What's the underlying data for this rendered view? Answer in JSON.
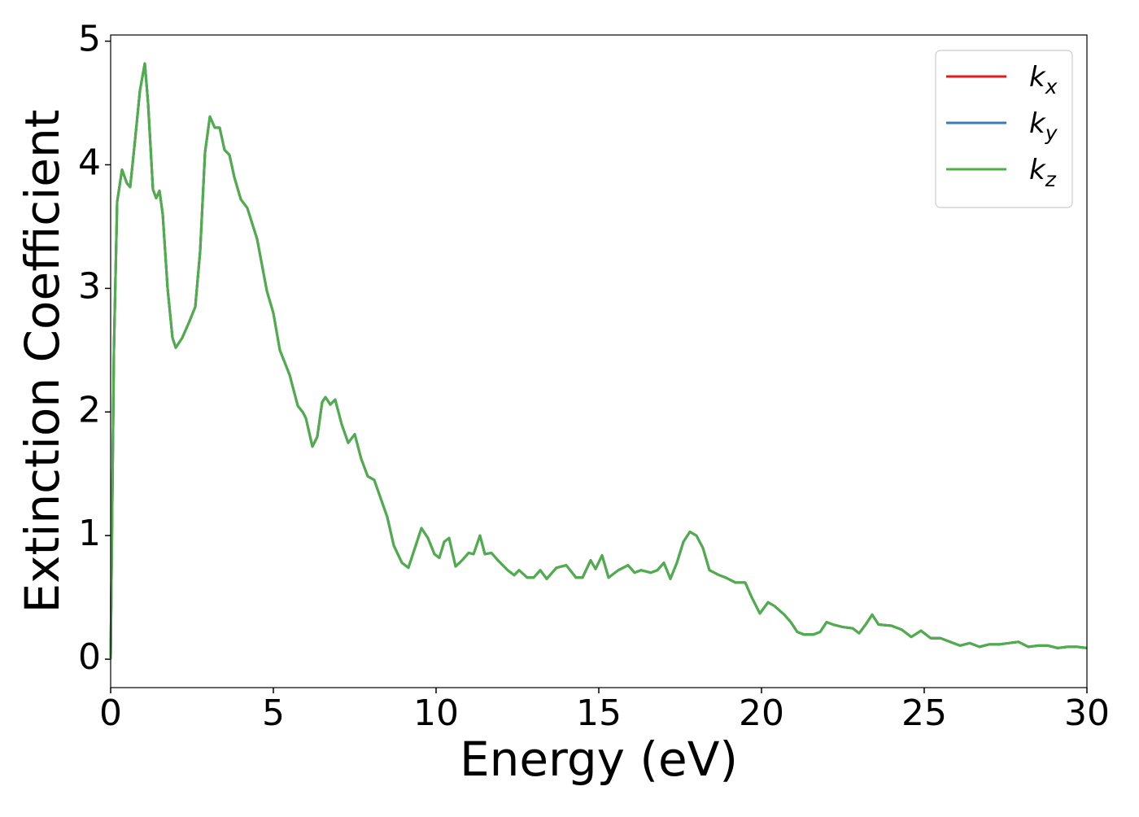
{
  "chart_data": {
    "type": "line",
    "xlabel": "Energy (eV)",
    "ylabel": "Extinction Coefficient",
    "xlim": [
      0,
      30
    ],
    "ylim": [
      -0.23,
      5.05
    ],
    "xticks": [
      0,
      5,
      10,
      15,
      20,
      25,
      30
    ],
    "yticks": [
      0,
      1,
      2,
      3,
      4,
      5
    ],
    "grid": false,
    "legend": "upper right",
    "x": [
      0,
      0.1,
      0.2,
      0.35,
      0.5,
      0.6,
      0.75,
      0.9,
      1.05,
      1.15,
      1.3,
      1.4,
      1.5,
      1.6,
      1.75,
      1.9,
      2.0,
      2.2,
      2.4,
      2.6,
      2.75,
      2.9,
      3.05,
      3.2,
      3.35,
      3.5,
      3.65,
      3.8,
      4.0,
      4.2,
      4.5,
      4.8,
      5.0,
      5.2,
      5.5,
      5.75,
      5.9,
      6.0,
      6.2,
      6.35,
      6.5,
      6.6,
      6.75,
      6.9,
      7.1,
      7.3,
      7.5,
      7.7,
      7.9,
      8.1,
      8.3,
      8.5,
      8.7,
      8.95,
      9.15,
      9.35,
      9.55,
      9.75,
      9.95,
      10.1,
      10.25,
      10.4,
      10.6,
      10.8,
      11.0,
      11.15,
      11.35,
      11.5,
      11.7,
      11.9,
      12.2,
      12.4,
      12.55,
      12.8,
      13.0,
      13.2,
      13.4,
      13.7,
      14.0,
      14.3,
      14.5,
      14.75,
      14.9,
      15.1,
      15.3,
      15.6,
      15.9,
      16.1,
      16.3,
      16.6,
      16.8,
      17.0,
      17.2,
      17.4,
      17.6,
      17.8,
      18.0,
      18.2,
      18.4,
      18.7,
      18.9,
      19.2,
      19.5,
      19.7,
      19.95,
      20.2,
      20.4,
      20.7,
      20.9,
      21.1,
      21.3,
      21.6,
      21.8,
      22.0,
      22.2,
      22.5,
      22.8,
      23.0,
      23.2,
      23.4,
      23.6,
      24.0,
      24.3,
      24.6,
      24.9,
      25.2,
      25.5,
      25.8,
      26.1,
      26.4,
      26.7,
      27.0,
      27.3,
      27.6,
      27.9,
      28.2,
      28.5,
      28.8,
      29.1,
      29.4,
      29.7,
      30.0
    ],
    "series": [
      {
        "name": "k_x",
        "color": "#e41a1c",
        "values": [
          0,
          2.5,
          3.7,
          3.96,
          3.85,
          3.82,
          4.2,
          4.6,
          4.82,
          4.5,
          3.8,
          3.73,
          3.79,
          3.6,
          3.0,
          2.6,
          2.52,
          2.6,
          2.72,
          2.85,
          3.3,
          4.1,
          4.39,
          4.3,
          4.3,
          4.12,
          4.08,
          3.9,
          3.72,
          3.65,
          3.4,
          2.98,
          2.8,
          2.5,
          2.3,
          2.05,
          2.0,
          1.95,
          1.72,
          1.8,
          2.08,
          2.12,
          2.06,
          2.1,
          1.9,
          1.75,
          1.82,
          1.62,
          1.48,
          1.45,
          1.3,
          1.15,
          0.92,
          0.78,
          0.74,
          0.9,
          1.06,
          0.98,
          0.85,
          0.82,
          0.95,
          0.98,
          0.75,
          0.8,
          0.86,
          0.85,
          1.0,
          0.85,
          0.86,
          0.8,
          0.72,
          0.68,
          0.72,
          0.66,
          0.66,
          0.72,
          0.65,
          0.74,
          0.76,
          0.66,
          0.66,
          0.8,
          0.73,
          0.84,
          0.66,
          0.72,
          0.76,
          0.7,
          0.72,
          0.7,
          0.72,
          0.78,
          0.65,
          0.78,
          0.95,
          1.03,
          1.0,
          0.9,
          0.72,
          0.68,
          0.66,
          0.62,
          0.62,
          0.5,
          0.37,
          0.46,
          0.43,
          0.36,
          0.3,
          0.22,
          0.2,
          0.2,
          0.22,
          0.3,
          0.28,
          0.26,
          0.25,
          0.21,
          0.28,
          0.36,
          0.28,
          0.27,
          0.24,
          0.18,
          0.23,
          0.17,
          0.17,
          0.14,
          0.11,
          0.13,
          0.1,
          0.12,
          0.12,
          0.13,
          0.14,
          0.1,
          0.11,
          0.11,
          0.09,
          0.1,
          0.1,
          0.09
        ]
      },
      {
        "name": "k_y",
        "color": "#377eb8",
        "values": [
          0,
          2.5,
          3.7,
          3.96,
          3.85,
          3.82,
          4.2,
          4.6,
          4.82,
          4.5,
          3.8,
          3.73,
          3.79,
          3.6,
          3.0,
          2.6,
          2.52,
          2.6,
          2.72,
          2.85,
          3.3,
          4.1,
          4.39,
          4.3,
          4.3,
          4.12,
          4.08,
          3.9,
          3.72,
          3.65,
          3.4,
          2.98,
          2.8,
          2.5,
          2.3,
          2.05,
          2.0,
          1.95,
          1.72,
          1.8,
          2.08,
          2.12,
          2.06,
          2.1,
          1.9,
          1.75,
          1.82,
          1.62,
          1.48,
          1.45,
          1.3,
          1.15,
          0.92,
          0.78,
          0.74,
          0.9,
          1.06,
          0.98,
          0.85,
          0.82,
          0.95,
          0.98,
          0.75,
          0.8,
          0.86,
          0.85,
          1.0,
          0.85,
          0.86,
          0.8,
          0.72,
          0.68,
          0.72,
          0.66,
          0.66,
          0.72,
          0.65,
          0.74,
          0.76,
          0.66,
          0.66,
          0.8,
          0.73,
          0.84,
          0.66,
          0.72,
          0.76,
          0.7,
          0.72,
          0.7,
          0.72,
          0.78,
          0.65,
          0.78,
          0.95,
          1.03,
          1.0,
          0.9,
          0.72,
          0.68,
          0.66,
          0.62,
          0.62,
          0.5,
          0.37,
          0.46,
          0.43,
          0.36,
          0.3,
          0.22,
          0.2,
          0.2,
          0.22,
          0.3,
          0.28,
          0.26,
          0.25,
          0.21,
          0.28,
          0.36,
          0.28,
          0.27,
          0.24,
          0.18,
          0.23,
          0.17,
          0.17,
          0.14,
          0.11,
          0.13,
          0.1,
          0.12,
          0.12,
          0.13,
          0.14,
          0.1,
          0.11,
          0.11,
          0.09,
          0.1,
          0.1,
          0.09
        ]
      },
      {
        "name": "k_z",
        "color": "#4daf4a",
        "values": [
          0,
          2.5,
          3.7,
          3.96,
          3.85,
          3.82,
          4.2,
          4.6,
          4.82,
          4.5,
          3.8,
          3.73,
          3.79,
          3.6,
          3.0,
          2.6,
          2.52,
          2.6,
          2.72,
          2.85,
          3.3,
          4.1,
          4.39,
          4.3,
          4.3,
          4.12,
          4.08,
          3.9,
          3.72,
          3.65,
          3.4,
          2.98,
          2.8,
          2.5,
          2.3,
          2.05,
          2.0,
          1.95,
          1.72,
          1.8,
          2.08,
          2.12,
          2.06,
          2.1,
          1.9,
          1.75,
          1.82,
          1.62,
          1.48,
          1.45,
          1.3,
          1.15,
          0.92,
          0.78,
          0.74,
          0.9,
          1.06,
          0.98,
          0.85,
          0.82,
          0.95,
          0.98,
          0.75,
          0.8,
          0.86,
          0.85,
          1.0,
          0.85,
          0.86,
          0.8,
          0.72,
          0.68,
          0.72,
          0.66,
          0.66,
          0.72,
          0.65,
          0.74,
          0.76,
          0.66,
          0.66,
          0.8,
          0.73,
          0.84,
          0.66,
          0.72,
          0.76,
          0.7,
          0.72,
          0.7,
          0.72,
          0.78,
          0.65,
          0.78,
          0.95,
          1.03,
          1.0,
          0.9,
          0.72,
          0.68,
          0.66,
          0.62,
          0.62,
          0.5,
          0.37,
          0.46,
          0.43,
          0.36,
          0.3,
          0.22,
          0.2,
          0.2,
          0.22,
          0.3,
          0.28,
          0.26,
          0.25,
          0.21,
          0.28,
          0.36,
          0.28,
          0.27,
          0.24,
          0.18,
          0.23,
          0.17,
          0.17,
          0.14,
          0.11,
          0.13,
          0.1,
          0.12,
          0.12,
          0.13,
          0.14,
          0.1,
          0.11,
          0.11,
          0.09,
          0.1,
          0.1,
          0.09
        ]
      }
    ]
  }
}
